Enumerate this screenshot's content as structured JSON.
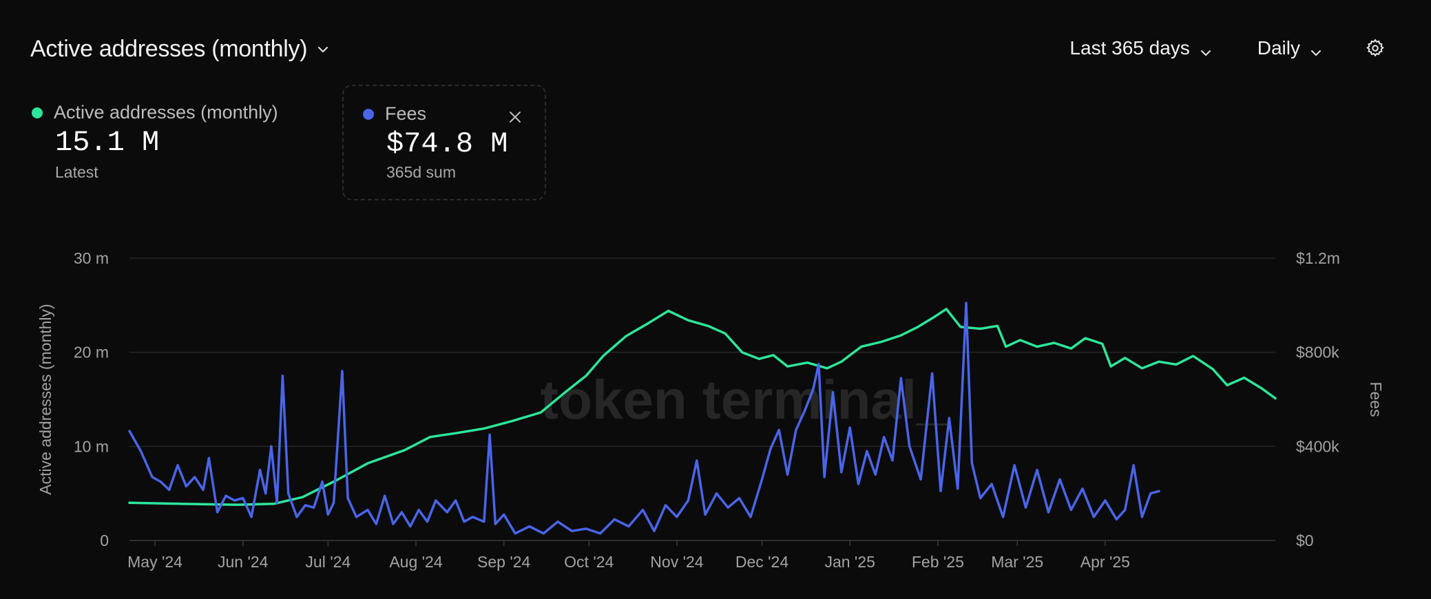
{
  "header": {
    "title": "Active addresses (monthly)",
    "range_label": "Last 365 days",
    "granularity_label": "Daily"
  },
  "metrics": [
    {
      "name": "Active addresses (monthly)",
      "value": "15.1 M",
      "sub": "Latest",
      "color": "#2ee59d"
    },
    {
      "name": "Fees",
      "value": "$74.8 M",
      "sub": "365d sum",
      "color": "#4a65e8"
    }
  ],
  "watermark": "token terminal_",
  "icons": [
    "chevron-down-icon",
    "gear-icon",
    "close-icon"
  ],
  "chart_data": {
    "type": "line",
    "x_start": "2024-04-22",
    "x_end": "2025-04-20",
    "x_ticks": [
      "May '24",
      "Jun '24",
      "Jul '24",
      "Aug '24",
      "Sep '24",
      "Oct '24",
      "Nov '24",
      "Dec '24",
      "Jan '25",
      "Feb '25",
      "Mar '25",
      "Apr '25"
    ],
    "x_tick_dates": [
      "2024-05-01",
      "2024-06-01",
      "2024-07-01",
      "2024-08-01",
      "2024-09-01",
      "2024-10-01",
      "2024-11-01",
      "2024-12-01",
      "2025-01-01",
      "2025-02-01",
      "2025-03-01",
      "2025-04-01"
    ],
    "y_left": {
      "label": "Active addresses (monthly)",
      "ticks": [
        "0",
        "10 m",
        "20 m",
        "30 m"
      ],
      "lim": [
        0,
        30000000
      ]
    },
    "y_right": {
      "label": "Fees",
      "ticks": [
        "$0",
        "$400k",
        "$800k",
        "$1.2m"
      ],
      "lim": [
        0,
        1200000
      ]
    },
    "grid": true,
    "series": [
      {
        "name": "Active addresses (monthly)",
        "axis": "left",
        "color": "#2ee59d",
        "points": [
          [
            "2024-04-22",
            4000000.0
          ],
          [
            "2024-05-10",
            3900000.0
          ],
          [
            "2024-05-30",
            3800000.0
          ],
          [
            "2024-06-12",
            3900000.0
          ],
          [
            "2024-06-22",
            4600000.0
          ],
          [
            "2024-07-04",
            6400000.0
          ],
          [
            "2024-07-15",
            8200000.0
          ],
          [
            "2024-07-28",
            9600000.0
          ],
          [
            "2024-08-06",
            11000000.0
          ],
          [
            "2024-08-15",
            11400000.0
          ],
          [
            "2024-08-25",
            11900000.0
          ],
          [
            "2024-09-04",
            12700000.0
          ],
          [
            "2024-09-14",
            13600000.0
          ],
          [
            "2024-09-22",
            15600000.0
          ],
          [
            "2024-09-30",
            17500000.0
          ],
          [
            "2024-10-06",
            19600000.0
          ],
          [
            "2024-10-14",
            21700000.0
          ],
          [
            "2024-10-22",
            23100000.0
          ],
          [
            "2024-10-29",
            24400000.0
          ],
          [
            "2024-11-05",
            23400000.0
          ],
          [
            "2024-11-12",
            22800000.0
          ],
          [
            "2024-11-18",
            22000000.0
          ],
          [
            "2024-11-24",
            20000000.0
          ],
          [
            "2024-11-30",
            19300000.0
          ],
          [
            "2024-12-05",
            19700000.0
          ],
          [
            "2024-12-10",
            18500000.0
          ],
          [
            "2024-12-17",
            18900000.0
          ],
          [
            "2024-12-24",
            18300000.0
          ],
          [
            "2024-12-29",
            19000000.0
          ],
          [
            "2025-01-05",
            20600000.0
          ],
          [
            "2025-01-12",
            21100000.0
          ],
          [
            "2025-01-19",
            21800000.0
          ],
          [
            "2025-01-25",
            22700000.0
          ],
          [
            "2025-01-31",
            23800000.0
          ],
          [
            "2025-02-04",
            24600000.0
          ],
          [
            "2025-02-09",
            22700000.0
          ],
          [
            "2025-02-16",
            22500000.0
          ],
          [
            "2025-02-22",
            22800000.0
          ],
          [
            "2025-02-25",
            20600000.0
          ],
          [
            "2025-03-02",
            21300000.0
          ],
          [
            "2025-03-08",
            20600000.0
          ],
          [
            "2025-03-14",
            21000000.0
          ],
          [
            "2025-03-20",
            20400000.0
          ],
          [
            "2025-03-25",
            21500000.0
          ],
          [
            "2025-03-31",
            20900000.0
          ],
          [
            "2025-04-03",
            18500000.0
          ],
          [
            "2025-04-08",
            19400000.0
          ],
          [
            "2025-04-14",
            18300000.0
          ],
          [
            "2025-04-20",
            19000000.0
          ],
          [
            "2025-04-26",
            18700000.0
          ],
          [
            "2025-05-02",
            19600000.0
          ],
          [
            "2025-05-09",
            18200000.0
          ],
          [
            "2025-05-14",
            16500000.0
          ],
          [
            "2025-05-20",
            17300000.0
          ],
          [
            "2025-05-26",
            16200000.0
          ],
          [
            "2025-05-31",
            15100000.0
          ]
        ]
      },
      {
        "name": "Fees",
        "axis": "right",
        "color": "#4a65e8",
        "points": [
          [
            "2024-04-22",
            465000
          ],
          [
            "2024-04-26",
            380000
          ],
          [
            "2024-04-30",
            270000
          ],
          [
            "2024-05-03",
            250000
          ],
          [
            "2024-05-06",
            215000
          ],
          [
            "2024-05-09",
            320000
          ],
          [
            "2024-05-12",
            230000
          ],
          [
            "2024-05-15",
            270000
          ],
          [
            "2024-05-18",
            215000
          ],
          [
            "2024-05-20",
            350000
          ],
          [
            "2024-05-23",
            120000
          ],
          [
            "2024-05-26",
            190000
          ],
          [
            "2024-05-29",
            170000
          ],
          [
            "2024-06-01",
            180000
          ],
          [
            "2024-06-04",
            100000
          ],
          [
            "2024-06-07",
            300000
          ],
          [
            "2024-06-09",
            200000
          ],
          [
            "2024-06-11",
            400000
          ],
          [
            "2024-06-13",
            160000
          ],
          [
            "2024-06-15",
            700000
          ],
          [
            "2024-06-17",
            200000
          ],
          [
            "2024-06-20",
            100000
          ],
          [
            "2024-06-23",
            150000
          ],
          [
            "2024-06-26",
            140000
          ],
          [
            "2024-06-29",
            250000
          ],
          [
            "2024-07-01",
            110000
          ],
          [
            "2024-07-03",
            160000
          ],
          [
            "2024-07-06",
            720000
          ],
          [
            "2024-07-08",
            180000
          ],
          [
            "2024-07-11",
            100000
          ],
          [
            "2024-07-15",
            130000
          ],
          [
            "2024-07-18",
            70000
          ],
          [
            "2024-07-21",
            190000
          ],
          [
            "2024-07-24",
            70000
          ],
          [
            "2024-07-27",
            120000
          ],
          [
            "2024-07-30",
            60000
          ],
          [
            "2024-08-02",
            130000
          ],
          [
            "2024-08-05",
            80000
          ],
          [
            "2024-08-08",
            170000
          ],
          [
            "2024-08-12",
            120000
          ],
          [
            "2024-08-15",
            170000
          ],
          [
            "2024-08-18",
            80000
          ],
          [
            "2024-08-21",
            100000
          ],
          [
            "2024-08-25",
            80000
          ],
          [
            "2024-08-27",
            450000
          ],
          [
            "2024-08-29",
            70000
          ],
          [
            "2024-09-01",
            110000
          ],
          [
            "2024-09-05",
            30000
          ],
          [
            "2024-09-10",
            60000
          ],
          [
            "2024-09-15",
            30000
          ],
          [
            "2024-09-20",
            80000
          ],
          [
            "2024-09-25",
            40000
          ],
          [
            "2024-09-30",
            50000
          ],
          [
            "2024-10-05",
            30000
          ],
          [
            "2024-10-10",
            90000
          ],
          [
            "2024-10-15",
            60000
          ],
          [
            "2024-10-20",
            130000
          ],
          [
            "2024-10-24",
            40000
          ],
          [
            "2024-10-28",
            150000
          ],
          [
            "2024-11-01",
            100000
          ],
          [
            "2024-11-05",
            170000
          ],
          [
            "2024-11-08",
            340000
          ],
          [
            "2024-11-11",
            110000
          ],
          [
            "2024-11-15",
            200000
          ],
          [
            "2024-11-19",
            140000
          ],
          [
            "2024-11-23",
            180000
          ],
          [
            "2024-11-27",
            100000
          ],
          [
            "2024-12-01",
            260000
          ],
          [
            "2024-12-04",
            390000
          ],
          [
            "2024-12-07",
            470000
          ],
          [
            "2024-12-10",
            280000
          ],
          [
            "2024-12-13",
            470000
          ],
          [
            "2024-12-16",
            550000
          ],
          [
            "2024-12-19",
            640000
          ],
          [
            "2024-12-21",
            750000
          ],
          [
            "2024-12-23",
            270000
          ],
          [
            "2024-12-26",
            630000
          ],
          [
            "2024-12-29",
            290000
          ],
          [
            "2025-01-01",
            480000
          ],
          [
            "2025-01-04",
            240000
          ],
          [
            "2025-01-07",
            380000
          ],
          [
            "2025-01-10",
            280000
          ],
          [
            "2025-01-13",
            440000
          ],
          [
            "2025-01-16",
            340000
          ],
          [
            "2025-01-19",
            690000
          ],
          [
            "2025-01-22",
            400000
          ],
          [
            "2025-01-26",
            260000
          ],
          [
            "2025-01-30",
            710000
          ],
          [
            "2025-02-02",
            210000
          ],
          [
            "2025-02-05",
            520000
          ],
          [
            "2025-02-08",
            220000
          ],
          [
            "2025-02-11",
            1010000
          ],
          [
            "2025-02-13",
            330000
          ],
          [
            "2025-02-16",
            180000
          ],
          [
            "2025-02-20",
            240000
          ],
          [
            "2025-02-24",
            100000
          ],
          [
            "2025-02-28",
            320000
          ],
          [
            "2025-03-04",
            140000
          ],
          [
            "2025-03-08",
            300000
          ],
          [
            "2025-03-12",
            120000
          ],
          [
            "2025-03-16",
            260000
          ],
          [
            "2025-03-20",
            130000
          ],
          [
            "2025-03-24",
            220000
          ],
          [
            "2025-03-28",
            100000
          ],
          [
            "2025-04-01",
            170000
          ],
          [
            "2025-04-05",
            90000
          ],
          [
            "2025-04-08",
            130000
          ],
          [
            "2025-04-11",
            320000
          ],
          [
            "2025-04-14",
            100000
          ],
          [
            "2025-04-17",
            200000
          ],
          [
            "2025-04-20",
            210000
          ]
        ]
      }
    ]
  }
}
